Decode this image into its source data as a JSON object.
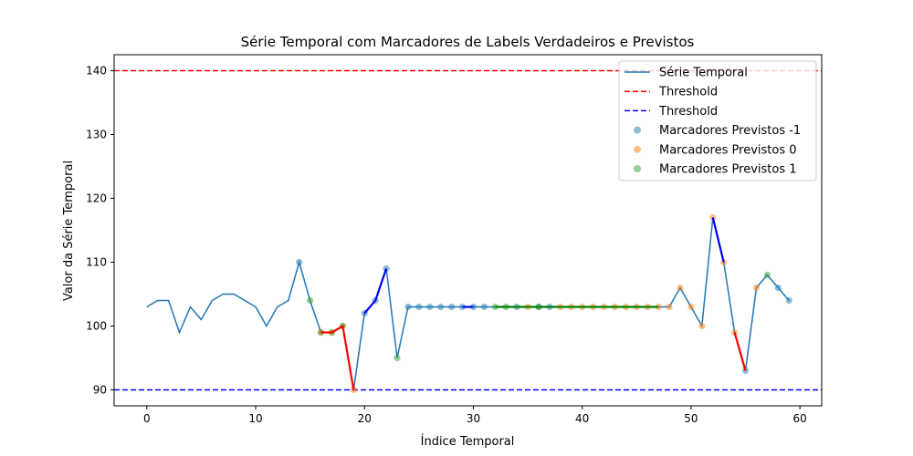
{
  "chart_data": {
    "type": "line",
    "title": "Série Temporal com Marcadores de Labels Verdadeiros e Previstos",
    "xlabel": "Índice Temporal",
    "ylabel": "Valor da Série Temporal",
    "xlim": [
      -3,
      62
    ],
    "ylim": [
      87.5,
      142.5
    ],
    "xticks": [
      0,
      10,
      20,
      30,
      40,
      50,
      60
    ],
    "yticks": [
      90,
      100,
      110,
      120,
      130,
      140
    ],
    "grid": false,
    "legend_position": "top-right",
    "series": [
      {
        "name": "Série Temporal",
        "color": "#1f77b4",
        "x": [
          0,
          1,
          2,
          3,
          4,
          5,
          6,
          7,
          8,
          9,
          10,
          11,
          12,
          13,
          14,
          15,
          16,
          17,
          18,
          19,
          20,
          21,
          22,
          23,
          24,
          25,
          26,
          27,
          28,
          29,
          30,
          31,
          32,
          33,
          34,
          35,
          36,
          37,
          38,
          39,
          40,
          41,
          42,
          43,
          44,
          45,
          46,
          47,
          48,
          49,
          50,
          51,
          52,
          53,
          54,
          55,
          56,
          57,
          58,
          59
        ],
        "y": [
          103,
          104,
          104,
          99,
          103,
          101,
          104,
          105,
          105,
          104,
          103,
          100,
          103,
          104,
          110,
          104,
          99,
          99,
          100,
          90,
          102,
          104,
          109,
          95,
          103,
          103,
          103,
          103,
          103,
          103,
          103,
          103,
          103,
          103,
          103,
          103,
          103,
          103,
          103,
          103,
          103,
          103,
          103,
          103,
          103,
          103,
          103,
          103,
          103,
          106,
          103,
          100,
          117,
          110,
          99,
          93,
          106,
          108,
          106,
          104
        ]
      }
    ],
    "thresholds": [
      {
        "name": "Threshold",
        "value": 140,
        "color": "#ff0000"
      },
      {
        "name": "Threshold",
        "value": 90,
        "color": "#0000ff"
      }
    ],
    "markers": [
      {
        "name": "Marcadores Previstos -1",
        "color": "#1f77b4",
        "x": [
          14,
          20,
          21,
          22,
          24,
          25,
          26,
          27,
          28,
          29,
          30,
          31,
          34,
          36,
          37,
          55,
          58,
          59
        ]
      },
      {
        "name": "Marcadores Previstos 0",
        "color": "#ff7f0e",
        "x": [
          16,
          17,
          18,
          19,
          35,
          38,
          39,
          40,
          41,
          42,
          43,
          44,
          45,
          46,
          47,
          48,
          49,
          50,
          51,
          52,
          53,
          54,
          56
        ]
      },
      {
        "name": "Marcadores Previstos 1",
        "color": "#2ca02c",
        "x": [
          15,
          16,
          17,
          18,
          23,
          32,
          33,
          36,
          57
        ]
      }
    ],
    "highlight_segments": [
      {
        "color": "#ff0000",
        "x": [
          16,
          17,
          18,
          19
        ]
      },
      {
        "color": "#0000ff",
        "x": [
          20,
          21,
          22
        ]
      },
      {
        "color": "#0000ff",
        "x": [
          29,
          30
        ]
      },
      {
        "color": "#008000",
        "x": [
          32,
          33,
          34,
          35,
          36,
          37,
          38,
          39,
          40,
          41,
          42,
          43,
          44,
          45,
          46,
          47
        ]
      },
      {
        "color": "#0000ff",
        "x": [
          52,
          53
        ]
      },
      {
        "color": "#ff0000",
        "x": [
          54,
          55
        ]
      }
    ]
  }
}
